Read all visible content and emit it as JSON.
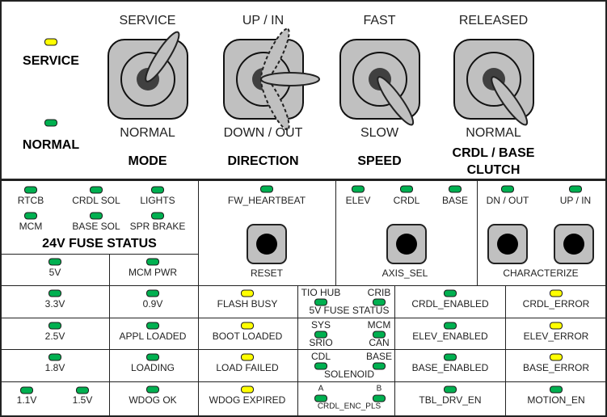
{
  "colors": {
    "led_green": "#00b050",
    "led_yellow": "#ffff00",
    "switch_gray": "#c0c0c0",
    "switch_hub": "#404040"
  },
  "mode_indicators": {
    "service": {
      "label": "SERVICE",
      "led": "yellow"
    },
    "normal": {
      "label": "NORMAL",
      "led": "green"
    }
  },
  "switches": [
    {
      "top": "SERVICE",
      "bottom": "NORMAL",
      "title": "MODE",
      "position": "up"
    },
    {
      "top": "UP / IN",
      "bottom": "DOWN / OUT",
      "title": "DIRECTION",
      "position": "center"
    },
    {
      "top": "FAST",
      "bottom": "SLOW",
      "title": "SPEED",
      "position": "down"
    },
    {
      "top": "RELEASED",
      "bottom": "NORMAL",
      "title_line1": "CRDL / BASE",
      "title_line2": "CLUTCH",
      "position": "down"
    }
  ],
  "fuse24v": {
    "title": "24V FUSE STATUS",
    "items": [
      {
        "label": "RTCB",
        "led": "green"
      },
      {
        "label": "CRDL SOL",
        "led": "green"
      },
      {
        "label": "LIGHTS",
        "led": "green"
      },
      {
        "label": "MCM",
        "led": "green"
      },
      {
        "label": "BASE SOL",
        "led": "green"
      },
      {
        "label": "SPR BRAKE",
        "led": "green"
      }
    ]
  },
  "power": [
    {
      "label": "5V",
      "led": "green"
    },
    {
      "label": "MCM PWR",
      "led": "green"
    }
  ],
  "heartbeat": {
    "label": "FW_HEARTBEAT",
    "led": "green",
    "button": "RESET"
  },
  "axis": {
    "items": [
      {
        "label": "ELEV",
        "led": "green"
      },
      {
        "label": "CRDL",
        "led": "green"
      },
      {
        "label": "BASE",
        "led": "green"
      }
    ],
    "button": "AXIS_SEL"
  },
  "characterize": {
    "items": [
      {
        "label": "DN / OUT",
        "led": "green"
      },
      {
        "label": "UP / IN",
        "led": "green"
      }
    ],
    "button": "CHARACTERIZE"
  },
  "grid": {
    "voltages": [
      {
        "label": "3.3V",
        "led": "green"
      },
      {
        "label": "2.5V",
        "led": "green"
      },
      {
        "label": "1.8V",
        "led": "green"
      },
      {
        "label": "1.1V",
        "led": "green"
      },
      {
        "label": "1.5V",
        "led": "green"
      }
    ],
    "boot": [
      {
        "label": "0.9V",
        "led": "green"
      },
      {
        "label": "APPL LOADED",
        "led": "green"
      },
      {
        "label": "LOADING",
        "led": "green"
      },
      {
        "label": "WDOG OK",
        "led": "green"
      }
    ],
    "flash": [
      {
        "label": "FLASH BUSY",
        "led": "yellow"
      },
      {
        "label": "BOOT LOADED",
        "led": "yellow"
      },
      {
        "label": "LOAD FAILED",
        "led": "yellow"
      },
      {
        "label": "WDOG EXPIRED",
        "led": "yellow"
      }
    ],
    "pairs": [
      {
        "left": "TIO HUB",
        "right": "CRIB",
        "caption": "5V FUSE STATUS"
      },
      {
        "left": "SYS",
        "right": "MCM",
        "left_sub": "SRIO",
        "right_sub": "CAN"
      },
      {
        "left": "CDL",
        "right": "BASE",
        "caption": "SOLENOID"
      },
      {
        "left": "A",
        "right": "B",
        "caption": "CRDL_ENC_PLS"
      }
    ],
    "enabled": [
      {
        "label": "CRDL_ENABLED",
        "led": "green"
      },
      {
        "label": "ELEV_ENABLED",
        "led": "green"
      },
      {
        "label": "BASE_ENABLED",
        "led": "green"
      },
      {
        "label": "TBL_DRV_EN",
        "led": "green"
      }
    ],
    "errors": [
      {
        "label": "CRDL_ERROR",
        "led": "yellow"
      },
      {
        "label": "ELEV_ERROR",
        "led": "yellow"
      },
      {
        "label": "BASE_ERROR",
        "led": "yellow"
      },
      {
        "label": "MOTION_EN",
        "led": "green"
      }
    ]
  }
}
